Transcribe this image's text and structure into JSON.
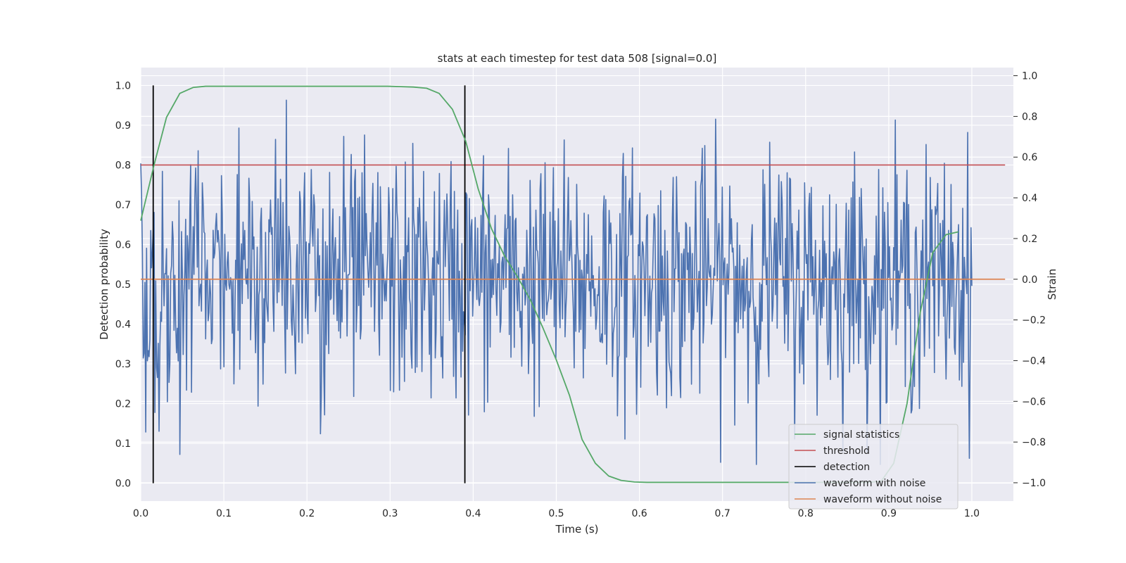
{
  "chart_data": {
    "type": "line",
    "title": "stats at each timestep for test data 508 [signal=0.0]",
    "xlabel": "Time (s)",
    "ylabel": "Detection probability",
    "ylabel_right": "Strain",
    "xlim": [
      0.0,
      1.05
    ],
    "ylim": [
      -0.045,
      1.045
    ],
    "ylim_right": [
      -1.09,
      1.04
    ],
    "x_ticks": [
      0.0,
      0.1,
      0.2,
      0.3,
      0.4,
      0.5,
      0.6,
      0.7,
      0.8,
      0.9,
      1.0
    ],
    "x_tick_labels": [
      "0.0",
      "0.1",
      "0.2",
      "0.3",
      "0.4",
      "0.5",
      "0.6",
      "0.7",
      "0.8",
      "0.9",
      "1.0"
    ],
    "y_ticks": [
      0.0,
      0.1,
      0.2,
      0.3,
      0.4,
      0.5,
      0.6,
      0.7,
      0.8,
      0.9,
      1.0
    ],
    "y_tick_labels": [
      "0.0",
      "0.1",
      "0.2",
      "0.3",
      "0.4",
      "0.5",
      "0.6",
      "0.7",
      "0.8",
      "0.9",
      "1.0"
    ],
    "y_right_ticks": [
      -1.0,
      -0.8,
      -0.6,
      -0.4,
      -0.2,
      0.0,
      0.2,
      0.4,
      0.6,
      0.8,
      1.0
    ],
    "y_right_tick_labels": [
      "−1.0",
      "−0.8",
      "−0.6",
      "−0.4",
      "−0.2",
      "0.0",
      "0.2",
      "0.4",
      "0.6",
      "0.8",
      "1.0"
    ],
    "grid": true,
    "legend_position": "lower-right",
    "series": [
      {
        "name": "signal statistics",
        "color": "#55a868",
        "axis": "left",
        "x": [
          0.0,
          0.016,
          0.031,
          0.047,
          0.063,
          0.078,
          0.094,
          0.109,
          0.125,
          0.14,
          0.156,
          0.172,
          0.188,
          0.203,
          0.219,
          0.234,
          0.25,
          0.266,
          0.281,
          0.297,
          0.313,
          0.328,
          0.344,
          0.359,
          0.375,
          0.391,
          0.406,
          0.422,
          0.438,
          0.453,
          0.469,
          0.484,
          0.5,
          0.516,
          0.531,
          0.547,
          0.563,
          0.578,
          0.594,
          0.609,
          0.625,
          0.641,
          0.656,
          0.672,
          0.688,
          0.703,
          0.719,
          0.734,
          0.75,
          0.766,
          0.781,
          0.797,
          0.813,
          0.828,
          0.844,
          0.859,
          0.875,
          0.891,
          0.906,
          0.922,
          0.938,
          0.953,
          0.969,
          0.984
        ],
        "values": [
          0.66,
          0.8,
          0.92,
          0.98,
          0.995,
          0.998,
          0.998,
          0.998,
          0.998,
          0.998,
          0.998,
          0.998,
          0.998,
          0.998,
          0.998,
          0.998,
          0.998,
          0.998,
          0.998,
          0.998,
          0.997,
          0.996,
          0.993,
          0.98,
          0.94,
          0.86,
          0.74,
          0.64,
          0.57,
          0.52,
          0.46,
          0.39,
          0.31,
          0.22,
          0.11,
          0.05,
          0.018,
          0.007,
          0.003,
          0.002,
          0.002,
          0.002,
          0.002,
          0.002,
          0.002,
          0.002,
          0.002,
          0.002,
          0.002,
          0.002,
          0.002,
          0.002,
          0.002,
          0.002,
          0.002,
          0.002,
          0.002,
          0.005,
          0.05,
          0.2,
          0.43,
          0.58,
          0.625,
          0.632
        ]
      },
      {
        "name": "threshold",
        "color": "#c44e52",
        "axis": "left",
        "x": [
          0.0,
          1.04
        ],
        "values": [
          0.8,
          0.8
        ]
      },
      {
        "name": "detection",
        "color": "#000000",
        "axis": "left",
        "segments": [
          {
            "x": 0.015,
            "y0": 0.0,
            "y1": 1.0
          },
          {
            "x": 0.39,
            "y0": 0.0,
            "y1": 1.0
          }
        ]
      },
      {
        "name": "waveform with noise",
        "color": "#4c72b0",
        "axis": "right",
        "x_start": 0.0,
        "x_end": 1.0,
        "n_points": 1000,
        "noise_std": 0.3,
        "min": -0.91,
        "max": 0.94
      },
      {
        "name": "waveform without noise",
        "color": "#dd8452",
        "axis": "right",
        "x": [
          0.0,
          1.04
        ],
        "values": [
          0.0,
          0.0
        ]
      }
    ]
  }
}
